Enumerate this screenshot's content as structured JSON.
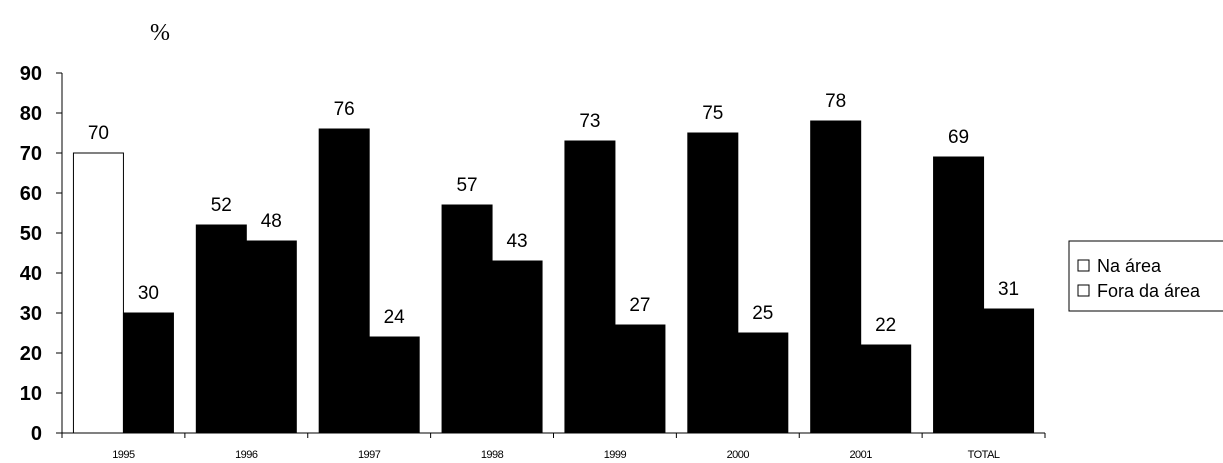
{
  "chart_data": {
    "type": "bar",
    "ylabel": "%",
    "ylim": [
      0,
      90
    ],
    "yticks": [
      0,
      10,
      20,
      30,
      40,
      50,
      60,
      70,
      80,
      90
    ],
    "categories": [
      "1995",
      "1996",
      "1997",
      "1998",
      "1999",
      "2000",
      "2001",
      "TOTAL"
    ],
    "series": [
      {
        "name": "Na área",
        "values": [
          70,
          52,
          76,
          57,
          73,
          75,
          78,
          69
        ]
      },
      {
        "name": "Fora da área",
        "values": [
          30,
          48,
          24,
          43,
          27,
          25,
          22,
          31
        ]
      }
    ],
    "legend_position": "right",
    "grid": false,
    "colors": {
      "bar_fill": "#000000",
      "first_bar_fill": "#ffffff",
      "stroke": "#000000"
    }
  }
}
